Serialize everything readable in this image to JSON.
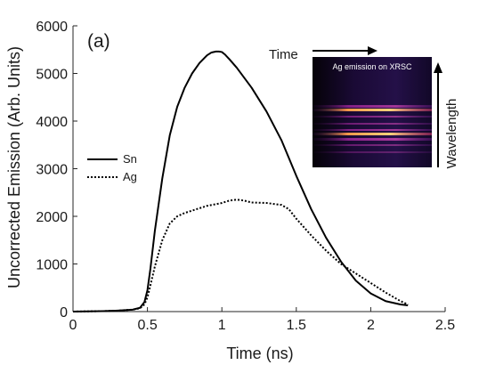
{
  "chart_data": {
    "type": "line",
    "panel_label": "(a)",
    "xlabel": "Time (ns)",
    "ylabel": "Uncorrected Emission (Arb. Units)",
    "xlim": [
      0,
      2.5
    ],
    "ylim": [
      0,
      6000
    ],
    "xticks": [
      0,
      0.5,
      1,
      1.5,
      2,
      2.5
    ],
    "yticks": [
      0,
      1000,
      2000,
      3000,
      4000,
      5000,
      6000
    ],
    "xtick_labels": [
      "0",
      "0.5",
      "1",
      "1.5",
      "2",
      "2.5"
    ],
    "ytick_labels": [
      "0",
      "1000",
      "2000",
      "3000",
      "4000",
      "5000",
      "6000"
    ],
    "grid": false,
    "legend_position": "left-middle",
    "series": [
      {
        "name": "Sn",
        "line_style": "solid",
        "color": "#000000",
        "x": [
          0,
          0.1,
          0.2,
          0.3,
          0.4,
          0.45,
          0.48,
          0.5,
          0.52,
          0.55,
          0.6,
          0.65,
          0.7,
          0.75,
          0.8,
          0.85,
          0.9,
          0.93,
          0.96,
          0.98,
          1.0,
          1.02,
          1.05,
          1.1,
          1.2,
          1.3,
          1.4,
          1.5,
          1.6,
          1.7,
          1.8,
          1.9,
          2.0,
          2.1,
          2.2,
          2.25
        ],
        "y": [
          0,
          5,
          10,
          20,
          40,
          80,
          200,
          450,
          900,
          1700,
          2800,
          3700,
          4300,
          4700,
          5000,
          5220,
          5380,
          5440,
          5460,
          5460,
          5450,
          5400,
          5300,
          5120,
          4700,
          4200,
          3600,
          2850,
          2150,
          1550,
          1050,
          650,
          380,
          220,
          150,
          130
        ]
      },
      {
        "name": "Ag",
        "line_style": "dotted",
        "color": "#000000",
        "x": [
          0,
          0.1,
          0.2,
          0.3,
          0.4,
          0.45,
          0.48,
          0.5,
          0.52,
          0.55,
          0.6,
          0.65,
          0.7,
          0.75,
          0.8,
          0.85,
          0.9,
          0.95,
          1.0,
          1.05,
          1.1,
          1.15,
          1.2,
          1.3,
          1.4,
          1.45,
          1.5,
          1.6,
          1.7,
          1.8,
          1.9,
          2.0,
          2.1,
          2.2,
          2.25
        ],
        "y": [
          0,
          5,
          10,
          20,
          40,
          70,
          150,
          300,
          550,
          950,
          1500,
          1850,
          2000,
          2070,
          2120,
          2170,
          2220,
          2250,
          2280,
          2330,
          2350,
          2330,
          2290,
          2280,
          2240,
          2150,
          1950,
          1600,
          1280,
          1000,
          800,
          600,
          400,
          220,
          150
        ]
      }
    ]
  },
  "inset": {
    "caption": "Ag emission on XRSC",
    "time_label": "Time",
    "wavelength_label": "Wavelength",
    "colors": {
      "background": "#0d0520",
      "band_bright": "#ffb060",
      "band_magenta": "#c02cb0",
      "band_purple": "#5a1b8a"
    }
  }
}
